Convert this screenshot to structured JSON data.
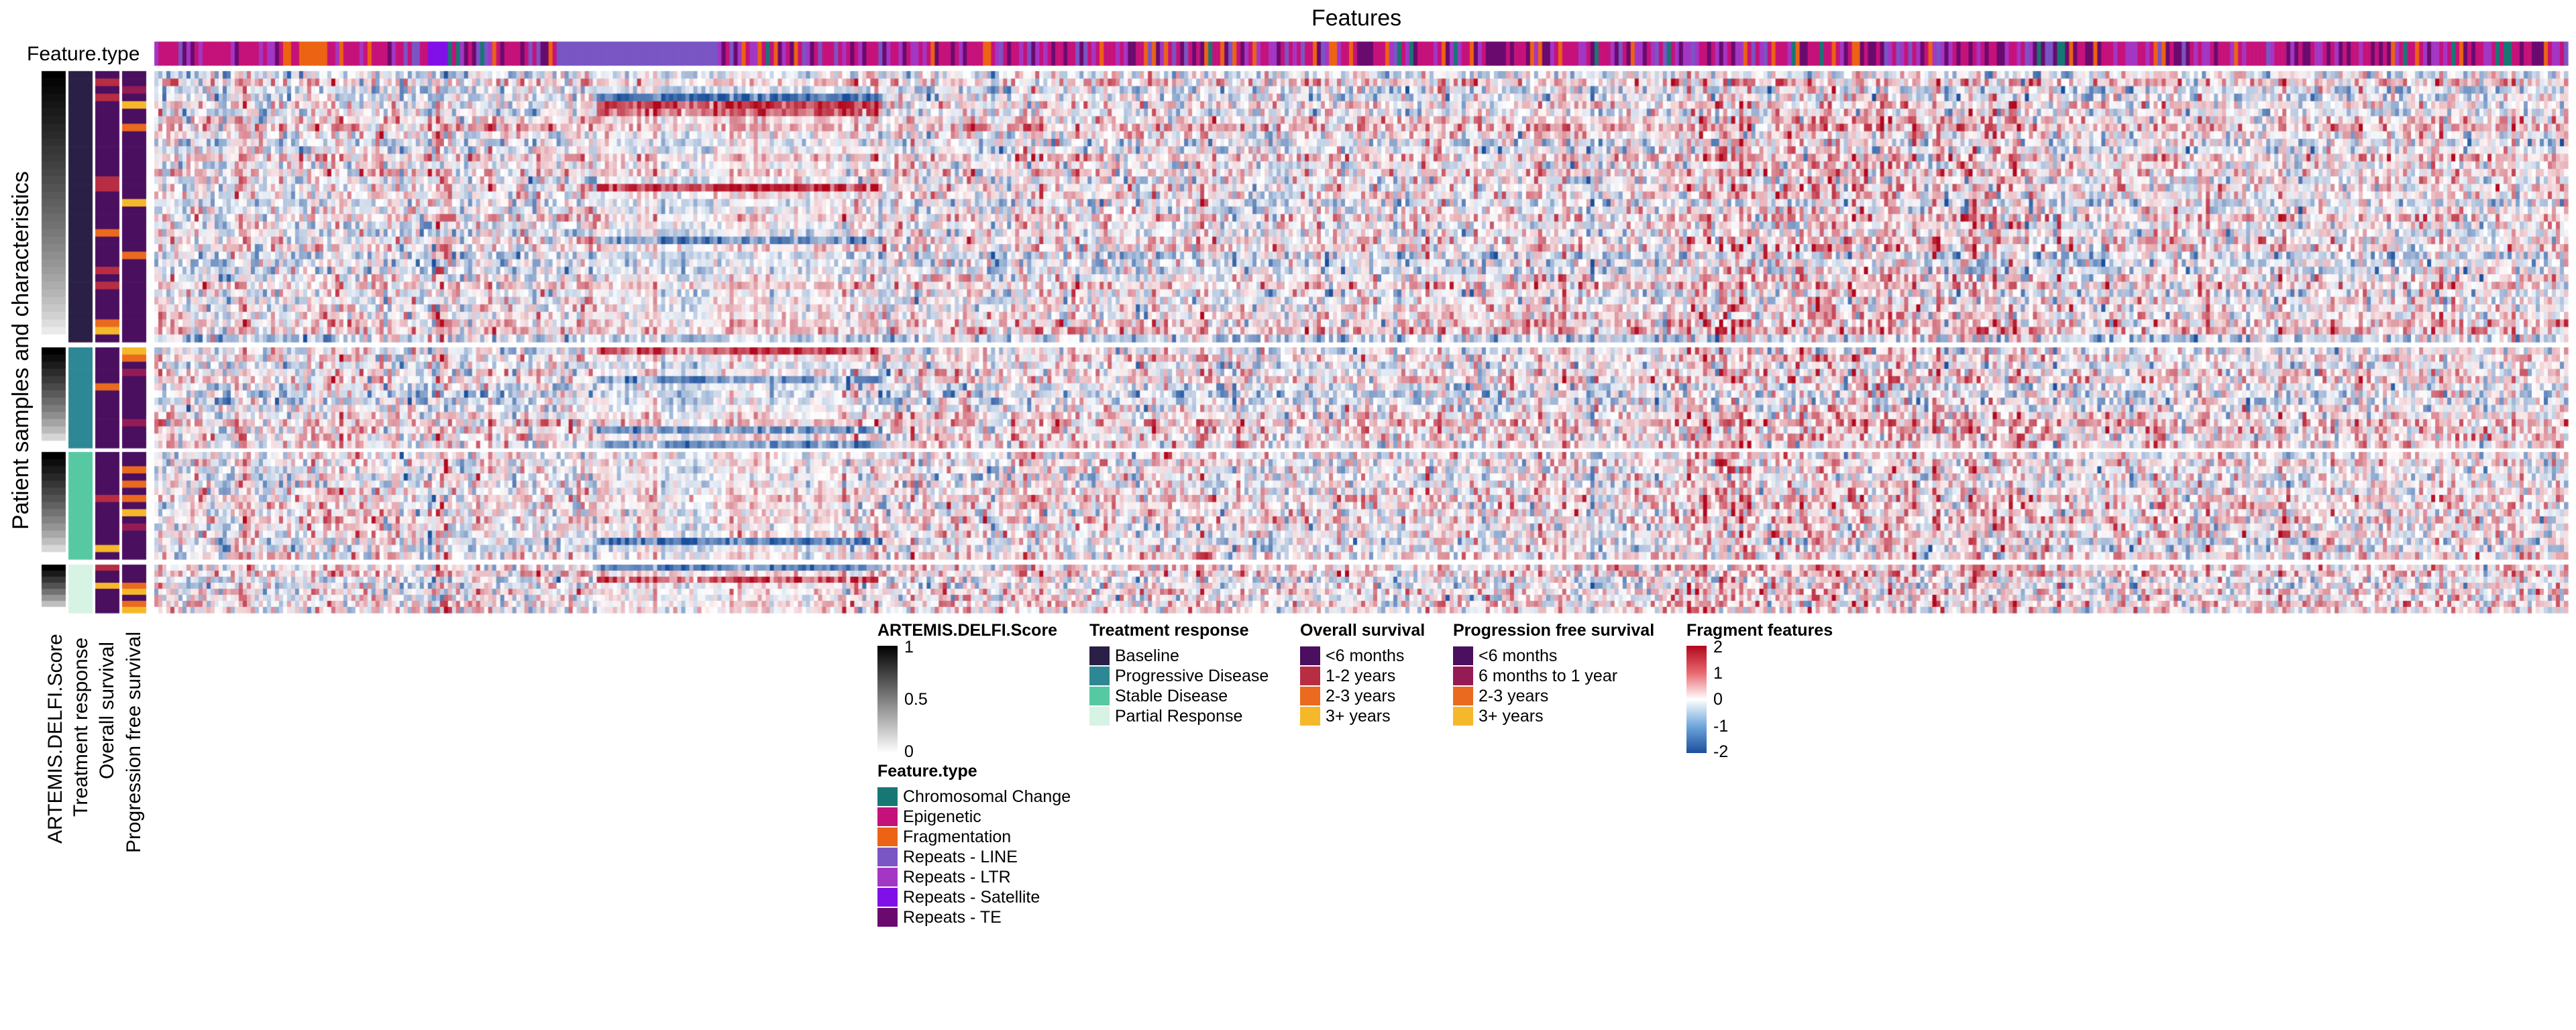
{
  "chart_data": {
    "type": "heatmap",
    "title": "Features",
    "ylabel": "Patient samples and characteristics",
    "row_annotation_labels": [
      "ARTEMIS.DELFI.Score",
      "Treatment response",
      "Overall survival",
      "Progression free survival"
    ],
    "column_annotation_label": "Feature.type",
    "value_range": [
      -2,
      2
    ],
    "row_groups": [
      "Baseline",
      "Progressive Disease",
      "Stable Disease",
      "Partial Response"
    ],
    "legends": {
      "score": {
        "title": "ARTEMIS.DELFI.Score",
        "ticks": [
          "1",
          "0.5",
          "0"
        ]
      },
      "treatment": {
        "title": "Treatment response",
        "items": [
          {
            "label": "Baseline",
            "color": "#2a1f45"
          },
          {
            "label": "Progressive Disease",
            "color": "#2e8794"
          },
          {
            "label": "Stable Disease",
            "color": "#56c9a2"
          },
          {
            "label": "Partial Response",
            "color": "#d6f3e4"
          }
        ]
      },
      "os": {
        "title": "Overall survival",
        "items": [
          {
            "label": "<6 months",
            "color": "#4a0f5f"
          },
          {
            "label": "1-2 years",
            "color": "#b72d43"
          },
          {
            "label": "2-3 years",
            "color": "#ea6a1f"
          },
          {
            "label": "3+ years",
            "color": "#f5b82b"
          }
        ]
      },
      "pfs": {
        "title": "Progression free survival",
        "items": [
          {
            "label": "<6 months",
            "color": "#4a0f5f"
          },
          {
            "label": "6 months to 1 year",
            "color": "#951b55"
          },
          {
            "label": "2-3 years",
            "color": "#ea6a1f"
          },
          {
            "label": "3+ years",
            "color": "#f5b82b"
          }
        ]
      },
      "fragment": {
        "title": "Fragment features",
        "ticks": [
          "2",
          "1",
          "0",
          "-1",
          "-2"
        ]
      },
      "feature_type": {
        "title": "Feature.type",
        "items": [
          {
            "label": "Chromosomal Change",
            "color": "#177873"
          },
          {
            "label": "Epigenetic",
            "color": "#c5127a"
          },
          {
            "label": "Fragmentation",
            "color": "#ec6313"
          },
          {
            "label": "Repeats - LINE",
            "color": "#7a55c4"
          },
          {
            "label": "Repeats - LTR",
            "color": "#a436c4"
          },
          {
            "label": "Repeats - Satellite",
            "color": "#8110e8"
          },
          {
            "label": "Repeats - TE",
            "color": "#6a0a6e"
          }
        ]
      }
    },
    "colors": {
      "high": "#b2071d",
      "mid": "#ffffff",
      "low": "#1a4f9c"
    }
  }
}
